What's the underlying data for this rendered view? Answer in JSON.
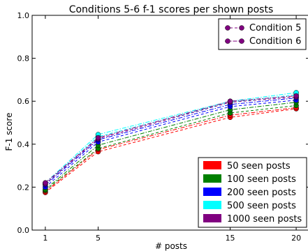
{
  "chart_data": {
    "type": "line",
    "title": "Conditions 5-6 f-1 scores per shown posts",
    "xlabel": "# posts",
    "ylabel": "F-1 score",
    "x": [
      1,
      5,
      15,
      20
    ],
    "xticks": [
      1,
      5,
      15,
      20
    ],
    "xtick_labels": [
      "1",
      "5",
      "15",
      "20"
    ],
    "xlim": [
      0,
      21
    ],
    "ylim": [
      0,
      1
    ],
    "yticks": [
      0.0,
      0.2,
      0.4,
      0.6,
      0.8,
      1.0
    ],
    "ytick_labels": [
      "0.0",
      "0.2",
      "0.4",
      "0.6",
      "0.8",
      "1.0"
    ],
    "grid": false,
    "style_legend": {
      "placement": "top-right",
      "entries": [
        {
          "label": "Condition 5",
          "linestyle": "dashed"
        },
        {
          "label": "Condition 6",
          "linestyle": "dashdot"
        }
      ]
    },
    "color_legend": {
      "placement": "bottom-right",
      "entries": [
        {
          "label": "50 seen posts",
          "color": "#ff0000"
        },
        {
          "label": "100 seen posts",
          "color": "#008000"
        },
        {
          "label": "200 seen posts",
          "color": "#0000ff"
        },
        {
          "label": "500 seen posts",
          "color": "#00ffff"
        },
        {
          "label": "1000 seen posts",
          "color": "#800080"
        }
      ]
    },
    "series": [
      {
        "condition": "Condition 5",
        "seen_posts": "50 seen posts",
        "color": "#ff0000",
        "values": [
          0.175,
          0.365,
          0.525,
          0.565
        ]
      },
      {
        "condition": "Condition 6",
        "seen_posts": "50 seen posts",
        "color": "#ff0000",
        "values": [
          0.18,
          0.375,
          0.535,
          0.57
        ]
      },
      {
        "condition": "Condition 5",
        "seen_posts": "100 seen posts",
        "color": "#008000",
        "values": [
          0.185,
          0.38,
          0.545,
          0.58
        ]
      },
      {
        "condition": "Condition 6",
        "seen_posts": "100 seen posts",
        "color": "#008000",
        "values": [
          0.19,
          0.395,
          0.56,
          0.595
        ]
      },
      {
        "condition": "Condition 5",
        "seen_posts": "200 seen posts",
        "color": "#0000ff",
        "values": [
          0.2,
          0.41,
          0.575,
          0.605
        ]
      },
      {
        "condition": "Condition 6",
        "seen_posts": "200 seen posts",
        "color": "#0000ff",
        "values": [
          0.21,
          0.42,
          0.585,
          0.615
        ]
      },
      {
        "condition": "Condition 5",
        "seen_posts": "500 seen posts",
        "color": "#00ffff",
        "values": [
          0.215,
          0.435,
          0.595,
          0.63
        ]
      },
      {
        "condition": "Condition 6",
        "seen_posts": "500 seen posts",
        "color": "#00ffff",
        "values": [
          0.22,
          0.445,
          0.6,
          0.64
        ]
      },
      {
        "condition": "Condition 5",
        "seen_posts": "1000 seen posts",
        "color": "#800080",
        "values": [
          0.215,
          0.425,
          0.595,
          0.62
        ]
      },
      {
        "condition": "Condition 6",
        "seen_posts": "1000 seen posts",
        "color": "#800080",
        "values": [
          0.22,
          0.43,
          0.6,
          0.625
        ]
      }
    ]
  }
}
